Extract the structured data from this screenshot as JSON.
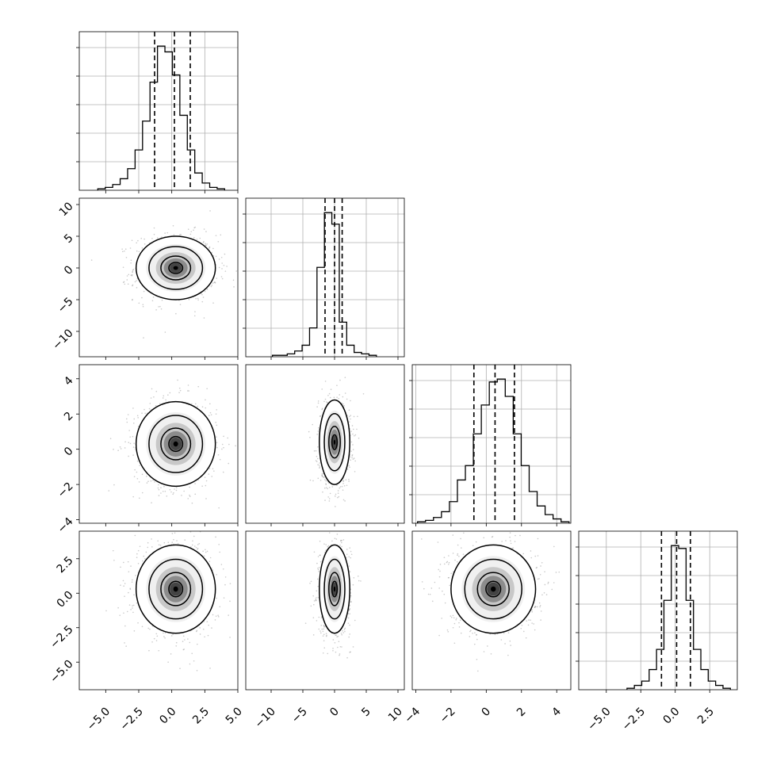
{
  "chart_data": {
    "type": "corner",
    "grid": true,
    "variables": [
      {
        "xlim": [
          -7,
          5
        ],
        "ticks": [
          -5.0,
          -2.5,
          0.0,
          2.5,
          5.0
        ],
        "tick_labels": [
          "−5.0",
          "−2.5",
          "0.0",
          "2.5",
          "5.0"
        ],
        "quantiles": [
          -1.3,
          0.2,
          1.4
        ],
        "hist_counts": [
          1,
          2,
          4,
          8,
          15,
          28,
          48,
          75,
          100,
          96,
          80,
          52,
          28,
          12,
          5,
          2,
          1
        ],
        "hist_range": [
          -5.6,
          4.0
        ]
      },
      {
        "xlim": [
          -14,
          11
        ],
        "ticks": [
          -10,
          -5,
          0,
          5,
          10
        ],
        "tick_labels": [
          "−10",
          "−5",
          "0",
          "5",
          "10"
        ],
        "quantiles": [
          -1.5,
          0.0,
          1.2
        ],
        "hist_counts": [
          1,
          1,
          2,
          4,
          8,
          20,
          62,
          100,
          92,
          24,
          8,
          3,
          2,
          1
        ],
        "hist_range": [
          -9.8,
          6.6
        ]
      },
      {
        "xlim": [
          -4.2,
          4.8
        ],
        "ticks": [
          -4,
          -2,
          0,
          2,
          4
        ],
        "tick_labels": [
          "−4",
          "−2",
          "0",
          "2",
          "4"
        ],
        "quantiles": [
          -0.7,
          0.5,
          1.6
        ],
        "hist_counts": [
          1,
          2,
          4,
          8,
          15,
          30,
          40,
          62,
          82,
          98,
          100,
          88,
          62,
          40,
          22,
          12,
          6,
          3,
          1
        ],
        "hist_range": [
          -3.9,
          4.7
        ]
      },
      {
        "xlim": [
          -7,
          4.5
        ],
        "ticks": [
          -5.0,
          -2.5,
          0.0,
          2.5
        ],
        "tick_labels": [
          "−5.0",
          "−2.5",
          "0.0",
          "2.5"
        ],
        "quantiles": [
          -1.0,
          0.1,
          1.1
        ],
        "hist_counts": [
          1,
          3,
          6,
          14,
          28,
          62,
          100,
          98,
          62,
          28,
          14,
          6,
          3,
          1
        ],
        "hist_range": [
          -3.5,
          4.0
        ]
      }
    ],
    "row_ticks": {
      "1": {
        "ticks": [
          10,
          5,
          0,
          -5,
          -10
        ],
        "labels": [
          "10",
          "5",
          "0",
          "−5",
          "−10"
        ]
      },
      "2": {
        "ticks": [
          4,
          2,
          0,
          -2,
          -4
        ],
        "labels": [
          "4",
          "2",
          "0",
          "−2",
          "−4"
        ]
      },
      "3": {
        "ticks": [
          2.5,
          0.0,
          -2.5,
          -5.0
        ],
        "labels": [
          "2.5",
          "0.0",
          "−2.5",
          "−5.0"
        ]
      }
    },
    "pairs": [
      {
        "row": 1,
        "col": 0,
        "center": [
          0.3,
          0.0
        ],
        "sigma": [
          1.5,
          2.5
        ],
        "rho": 0.0
      },
      {
        "row": 2,
        "col": 0,
        "center": [
          0.3,
          0.3
        ],
        "sigma": [
          1.5,
          1.2
        ],
        "rho": 0.0
      },
      {
        "row": 2,
        "col": 1,
        "center": [
          0.0,
          0.4
        ],
        "sigma": [
          1.2,
          1.2
        ],
        "rho": 0.0
      },
      {
        "row": 3,
        "col": 0,
        "center": [
          0.3,
          0.3
        ],
        "sigma": [
          1.5,
          1.6
        ],
        "rho": 0.0
      },
      {
        "row": 3,
        "col": 1,
        "center": [
          0.0,
          0.3
        ],
        "sigma": [
          1.2,
          1.6
        ],
        "rho": 0.0
      },
      {
        "row": 3,
        "col": 2,
        "center": [
          0.4,
          0.3
        ],
        "sigma": [
          1.2,
          1.6
        ],
        "rho": 0.0
      }
    ]
  }
}
